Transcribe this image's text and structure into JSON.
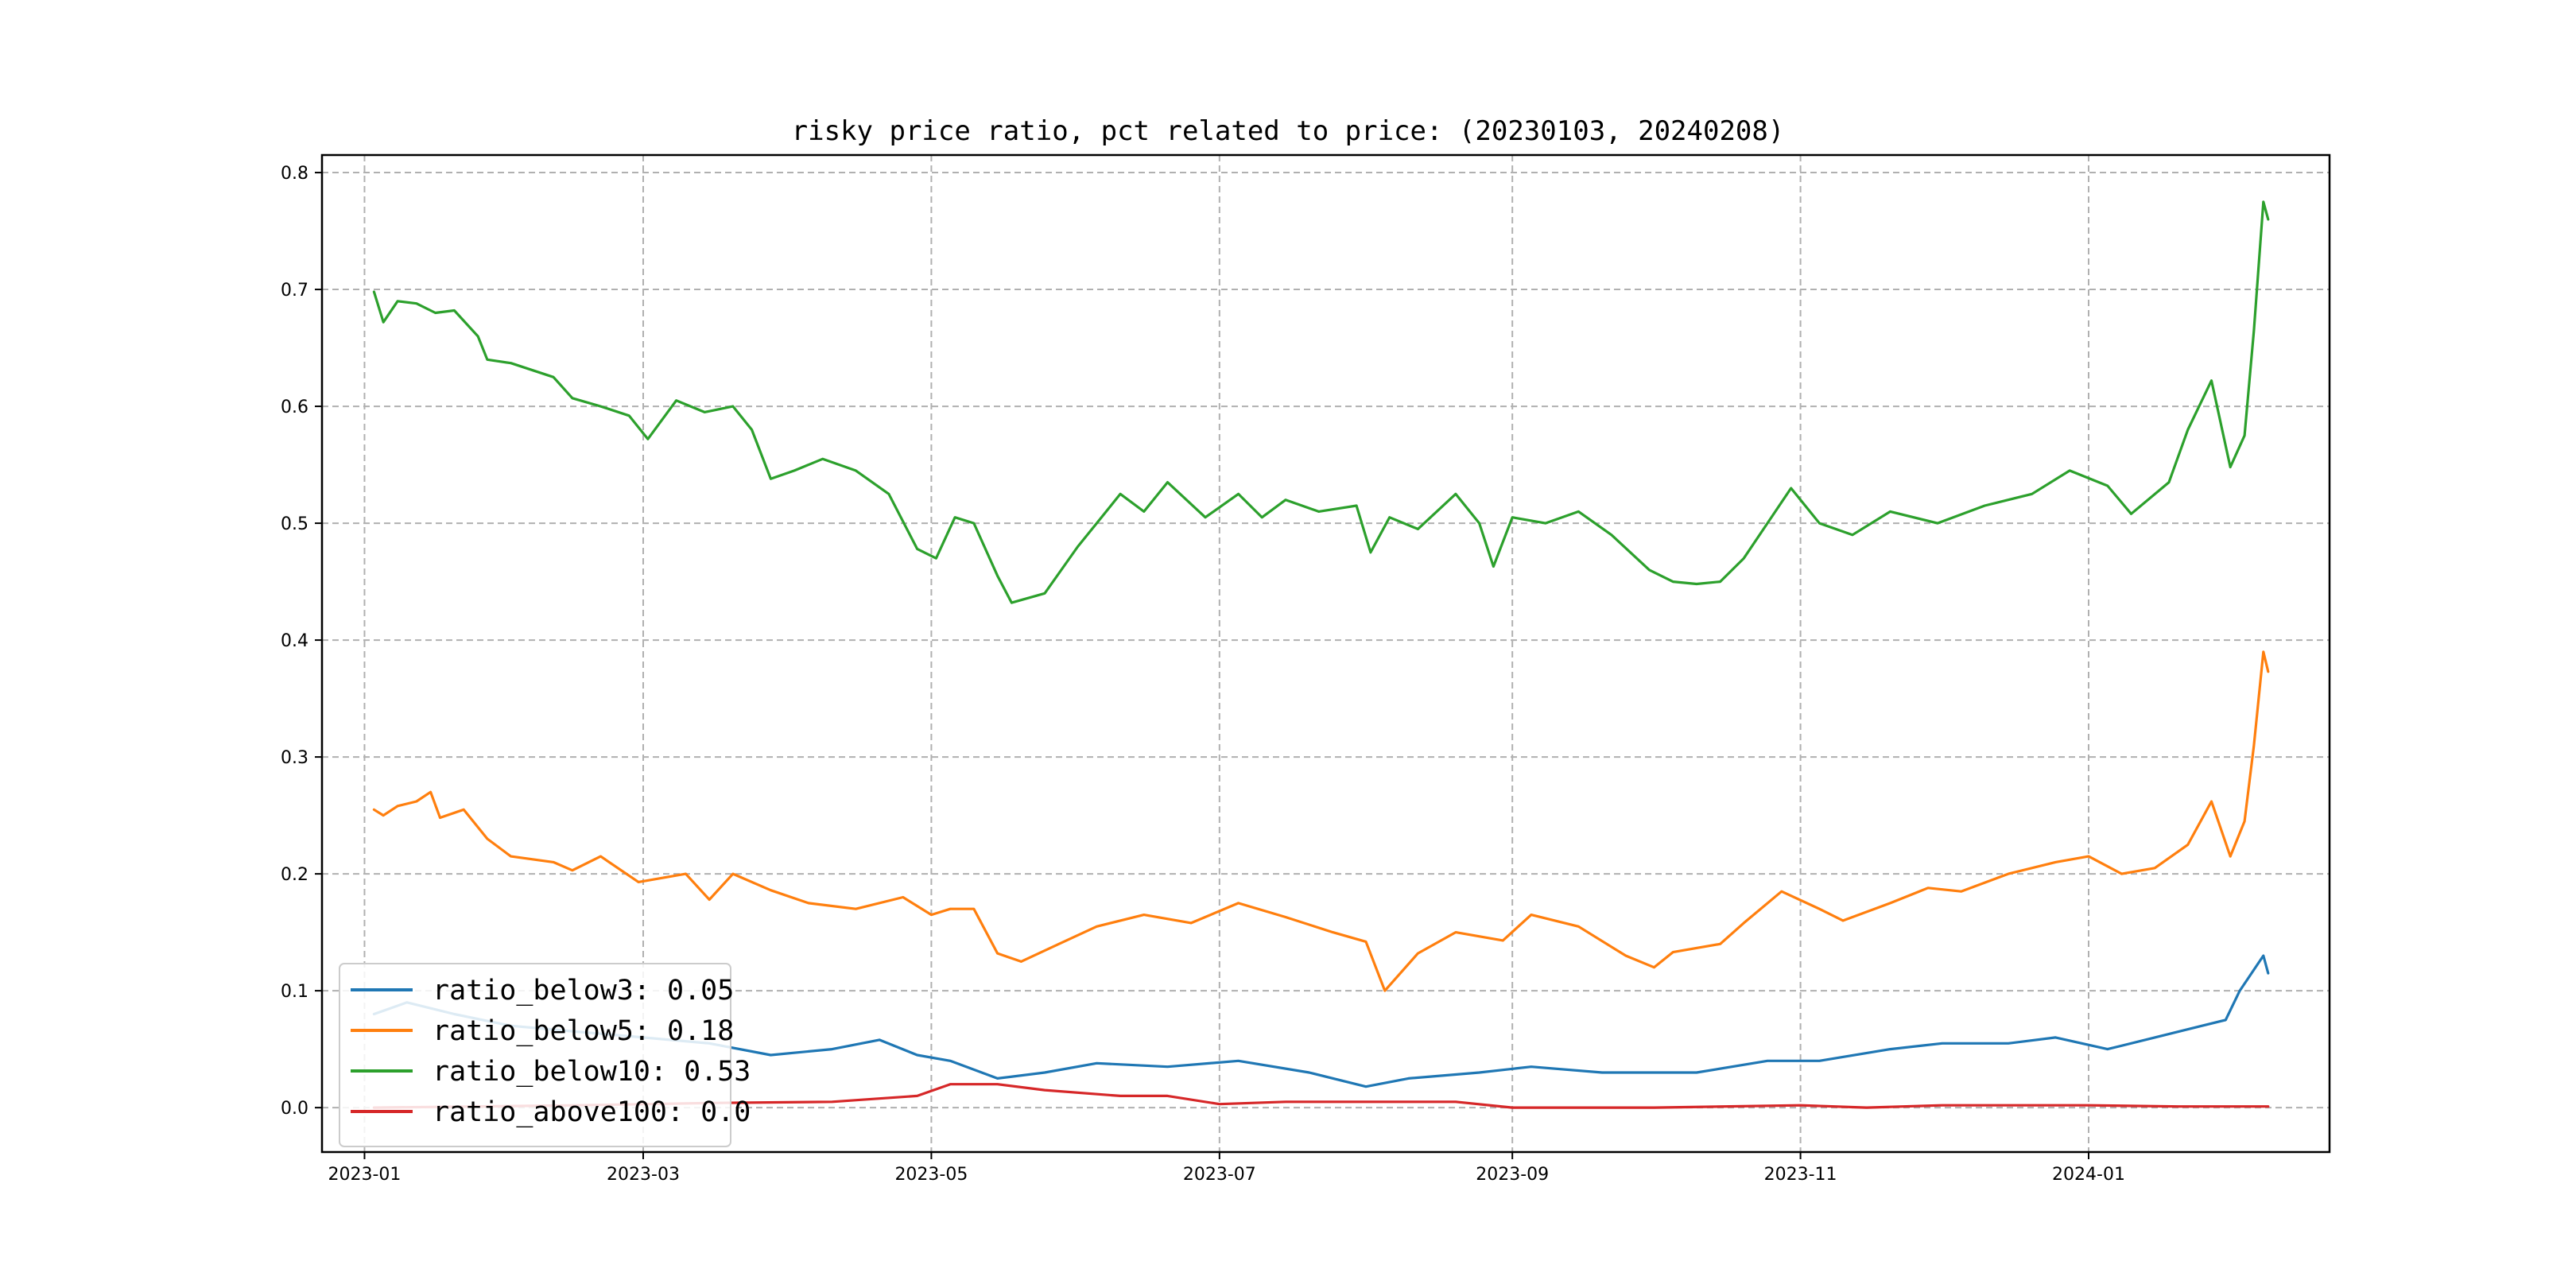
{
  "chart_data": {
    "type": "line",
    "title": "risky price ratio, pct related to price: (20230103, 20240208)",
    "xlabel": "",
    "ylabel": "",
    "xlim": [
      "2022-12-23",
      "2024-02-21"
    ],
    "ylim": [
      -0.038,
      0.815
    ],
    "x_ticks": [
      "2023-01",
      "2023-03",
      "2023-05",
      "2023-07",
      "2023-09",
      "2023-11",
      "2024-01"
    ],
    "y_ticks": [
      "0.0",
      "0.1",
      "0.2",
      "0.3",
      "0.4",
      "0.5",
      "0.6",
      "0.7",
      "0.8"
    ],
    "grid": true,
    "legend_position": "lower-left",
    "series": [
      {
        "name": "ratio_below3",
        "legend_label": "ratio_below3: 0.05",
        "color": "#1f77b4",
        "points": [
          [
            "2023-01-03",
            0.08
          ],
          [
            "2023-01-10",
            0.09
          ],
          [
            "2023-01-20",
            0.08
          ],
          [
            "2023-02-01",
            0.07
          ],
          [
            "2023-02-15",
            0.065
          ],
          [
            "2023-03-01",
            0.06
          ],
          [
            "2023-03-15",
            0.055
          ],
          [
            "2023-03-28",
            0.045
          ],
          [
            "2023-04-10",
            0.05
          ],
          [
            "2023-04-20",
            0.058
          ],
          [
            "2023-04-28",
            0.045
          ],
          [
            "2023-05-05",
            0.04
          ],
          [
            "2023-05-15",
            0.025
          ],
          [
            "2023-05-25",
            0.03
          ],
          [
            "2023-06-05",
            0.038
          ],
          [
            "2023-06-20",
            0.035
          ],
          [
            "2023-07-05",
            0.04
          ],
          [
            "2023-07-20",
            0.03
          ],
          [
            "2023-08-01",
            0.018
          ],
          [
            "2023-08-10",
            0.025
          ],
          [
            "2023-08-25",
            0.03
          ],
          [
            "2023-09-05",
            0.035
          ],
          [
            "2023-09-20",
            0.03
          ],
          [
            "2023-10-10",
            0.03
          ],
          [
            "2023-10-25",
            0.04
          ],
          [
            "2023-11-05",
            0.04
          ],
          [
            "2023-11-20",
            0.05
          ],
          [
            "2023-12-01",
            0.055
          ],
          [
            "2023-12-15",
            0.055
          ],
          [
            "2023-12-25",
            0.06
          ],
          [
            "2024-01-05",
            0.05
          ],
          [
            "2024-01-15",
            0.06
          ],
          [
            "2024-01-25",
            0.07
          ],
          [
            "2024-01-30",
            0.075
          ],
          [
            "2024-02-02",
            0.1
          ],
          [
            "2024-02-07",
            0.13
          ],
          [
            "2024-02-08",
            0.115
          ]
        ]
      },
      {
        "name": "ratio_below5",
        "legend_label": "ratio_below5: 0.18",
        "color": "#ff7f0e",
        "points": [
          [
            "2023-01-03",
            0.255
          ],
          [
            "2023-01-05",
            0.25
          ],
          [
            "2023-01-08",
            0.258
          ],
          [
            "2023-01-12",
            0.262
          ],
          [
            "2023-01-15",
            0.27
          ],
          [
            "2023-01-17",
            0.248
          ],
          [
            "2023-01-22",
            0.255
          ],
          [
            "2023-01-27",
            0.23
          ],
          [
            "2023-02-01",
            0.215
          ],
          [
            "2023-02-10",
            0.21
          ],
          [
            "2023-02-14",
            0.203
          ],
          [
            "2023-02-20",
            0.215
          ],
          [
            "2023-02-28",
            0.193
          ],
          [
            "2023-03-10",
            0.2
          ],
          [
            "2023-03-15",
            0.178
          ],
          [
            "2023-03-20",
            0.2
          ],
          [
            "2023-03-28",
            0.186
          ],
          [
            "2023-04-05",
            0.175
          ],
          [
            "2023-04-15",
            0.17
          ],
          [
            "2023-04-25",
            0.18
          ],
          [
            "2023-05-01",
            0.165
          ],
          [
            "2023-05-05",
            0.17
          ],
          [
            "2023-05-10",
            0.17
          ],
          [
            "2023-05-15",
            0.132
          ],
          [
            "2023-05-20",
            0.125
          ],
          [
            "2023-05-28",
            0.14
          ],
          [
            "2023-06-05",
            0.155
          ],
          [
            "2023-06-15",
            0.165
          ],
          [
            "2023-06-25",
            0.158
          ],
          [
            "2023-07-05",
            0.175
          ],
          [
            "2023-07-15",
            0.163
          ],
          [
            "2023-07-25",
            0.15
          ],
          [
            "2023-08-01",
            0.142
          ],
          [
            "2023-08-05",
            0.1
          ],
          [
            "2023-08-12",
            0.132
          ],
          [
            "2023-08-20",
            0.15
          ],
          [
            "2023-08-30",
            0.143
          ],
          [
            "2023-09-05",
            0.165
          ],
          [
            "2023-09-15",
            0.155
          ],
          [
            "2023-09-25",
            0.13
          ],
          [
            "2023-10-01",
            0.12
          ],
          [
            "2023-10-05",
            0.133
          ],
          [
            "2023-10-15",
            0.14
          ],
          [
            "2023-10-20",
            0.158
          ],
          [
            "2023-10-28",
            0.185
          ],
          [
            "2023-11-05",
            0.17
          ],
          [
            "2023-11-10",
            0.16
          ],
          [
            "2023-11-20",
            0.175
          ],
          [
            "2023-11-28",
            0.188
          ],
          [
            "2023-12-05",
            0.185
          ],
          [
            "2023-12-15",
            0.2
          ],
          [
            "2023-12-25",
            0.21
          ],
          [
            "2024-01-01",
            0.215
          ],
          [
            "2024-01-08",
            0.2
          ],
          [
            "2024-01-15",
            0.205
          ],
          [
            "2024-01-22",
            0.225
          ],
          [
            "2024-01-27",
            0.262
          ],
          [
            "2024-01-31",
            0.215
          ],
          [
            "2024-02-03",
            0.245
          ],
          [
            "2024-02-05",
            0.31
          ],
          [
            "2024-02-07",
            0.39
          ],
          [
            "2024-02-08",
            0.373
          ]
        ]
      },
      {
        "name": "ratio_below10",
        "legend_label": "ratio_below10: 0.53",
        "color": "#2ca02c",
        "points": [
          [
            "2023-01-03",
            0.698
          ],
          [
            "2023-01-05",
            0.672
          ],
          [
            "2023-01-08",
            0.69
          ],
          [
            "2023-01-12",
            0.688
          ],
          [
            "2023-01-16",
            0.68
          ],
          [
            "2023-01-20",
            0.682
          ],
          [
            "2023-01-25",
            0.66
          ],
          [
            "2023-01-27",
            0.64
          ],
          [
            "2023-02-01",
            0.637
          ],
          [
            "2023-02-10",
            0.625
          ],
          [
            "2023-02-14",
            0.607
          ],
          [
            "2023-02-20",
            0.6
          ],
          [
            "2023-02-26",
            0.592
          ],
          [
            "2023-03-02",
            0.572
          ],
          [
            "2023-03-08",
            0.605
          ],
          [
            "2023-03-14",
            0.595
          ],
          [
            "2023-03-20",
            0.6
          ],
          [
            "2023-03-24",
            0.58
          ],
          [
            "2023-03-28",
            0.538
          ],
          [
            "2023-04-02",
            0.545
          ],
          [
            "2023-04-08",
            0.555
          ],
          [
            "2023-04-15",
            0.545
          ],
          [
            "2023-04-22",
            0.525
          ],
          [
            "2023-04-28",
            0.478
          ],
          [
            "2023-05-02",
            0.47
          ],
          [
            "2023-05-06",
            0.505
          ],
          [
            "2023-05-10",
            0.5
          ],
          [
            "2023-05-15",
            0.455
          ],
          [
            "2023-05-18",
            0.432
          ],
          [
            "2023-05-25",
            0.44
          ],
          [
            "2023-06-01",
            0.48
          ],
          [
            "2023-06-05",
            0.5
          ],
          [
            "2023-06-10",
            0.525
          ],
          [
            "2023-06-15",
            0.51
          ],
          [
            "2023-06-20",
            0.535
          ],
          [
            "2023-06-28",
            0.505
          ],
          [
            "2023-07-05",
            0.525
          ],
          [
            "2023-07-10",
            0.505
          ],
          [
            "2023-07-15",
            0.52
          ],
          [
            "2023-07-22",
            0.51
          ],
          [
            "2023-07-30",
            0.515
          ],
          [
            "2023-08-02",
            0.475
          ],
          [
            "2023-08-06",
            0.505
          ],
          [
            "2023-08-12",
            0.495
          ],
          [
            "2023-08-20",
            0.525
          ],
          [
            "2023-08-25",
            0.5
          ],
          [
            "2023-08-28",
            0.463
          ],
          [
            "2023-09-01",
            0.505
          ],
          [
            "2023-09-08",
            0.5
          ],
          [
            "2023-09-15",
            0.51
          ],
          [
            "2023-09-22",
            0.49
          ],
          [
            "2023-09-30",
            0.46
          ],
          [
            "2023-10-05",
            0.45
          ],
          [
            "2023-10-10",
            0.448
          ],
          [
            "2023-10-15",
            0.45
          ],
          [
            "2023-10-20",
            0.47
          ],
          [
            "2023-10-25",
            0.5
          ],
          [
            "2023-10-30",
            0.53
          ],
          [
            "2023-11-05",
            0.5
          ],
          [
            "2023-11-12",
            0.49
          ],
          [
            "2023-11-20",
            0.51
          ],
          [
            "2023-11-30",
            0.5
          ],
          [
            "2023-12-10",
            0.515
          ],
          [
            "2023-12-20",
            0.525
          ],
          [
            "2023-12-28",
            0.545
          ],
          [
            "2024-01-05",
            0.532
          ],
          [
            "2024-01-10",
            0.508
          ],
          [
            "2024-01-18",
            0.535
          ],
          [
            "2024-01-22",
            0.58
          ],
          [
            "2024-01-27",
            0.622
          ],
          [
            "2024-01-31",
            0.548
          ],
          [
            "2024-02-03",
            0.575
          ],
          [
            "2024-02-05",
            0.665
          ],
          [
            "2024-02-07",
            0.775
          ],
          [
            "2024-02-08",
            0.76
          ]
        ]
      },
      {
        "name": "ratio_above100",
        "legend_label": "ratio_above100: 0.0",
        "color": "#d62728",
        "points": [
          [
            "2023-01-03",
            0.0
          ],
          [
            "2023-02-15",
            0.002
          ],
          [
            "2023-03-15",
            0.004
          ],
          [
            "2023-04-10",
            0.005
          ],
          [
            "2023-04-28",
            0.01
          ],
          [
            "2023-05-05",
            0.02
          ],
          [
            "2023-05-15",
            0.02
          ],
          [
            "2023-05-25",
            0.015
          ],
          [
            "2023-06-10",
            0.01
          ],
          [
            "2023-06-20",
            0.01
          ],
          [
            "2023-07-01",
            0.003
          ],
          [
            "2023-07-15",
            0.005
          ],
          [
            "2023-08-01",
            0.005
          ],
          [
            "2023-08-20",
            0.005
          ],
          [
            "2023-09-01",
            0.0
          ],
          [
            "2023-10-01",
            0.0
          ],
          [
            "2023-11-01",
            0.002
          ],
          [
            "2023-11-15",
            0.0
          ],
          [
            "2023-12-01",
            0.002
          ],
          [
            "2024-01-01",
            0.002
          ],
          [
            "2024-01-20",
            0.001
          ],
          [
            "2024-02-08",
            0.001
          ]
        ]
      }
    ]
  }
}
